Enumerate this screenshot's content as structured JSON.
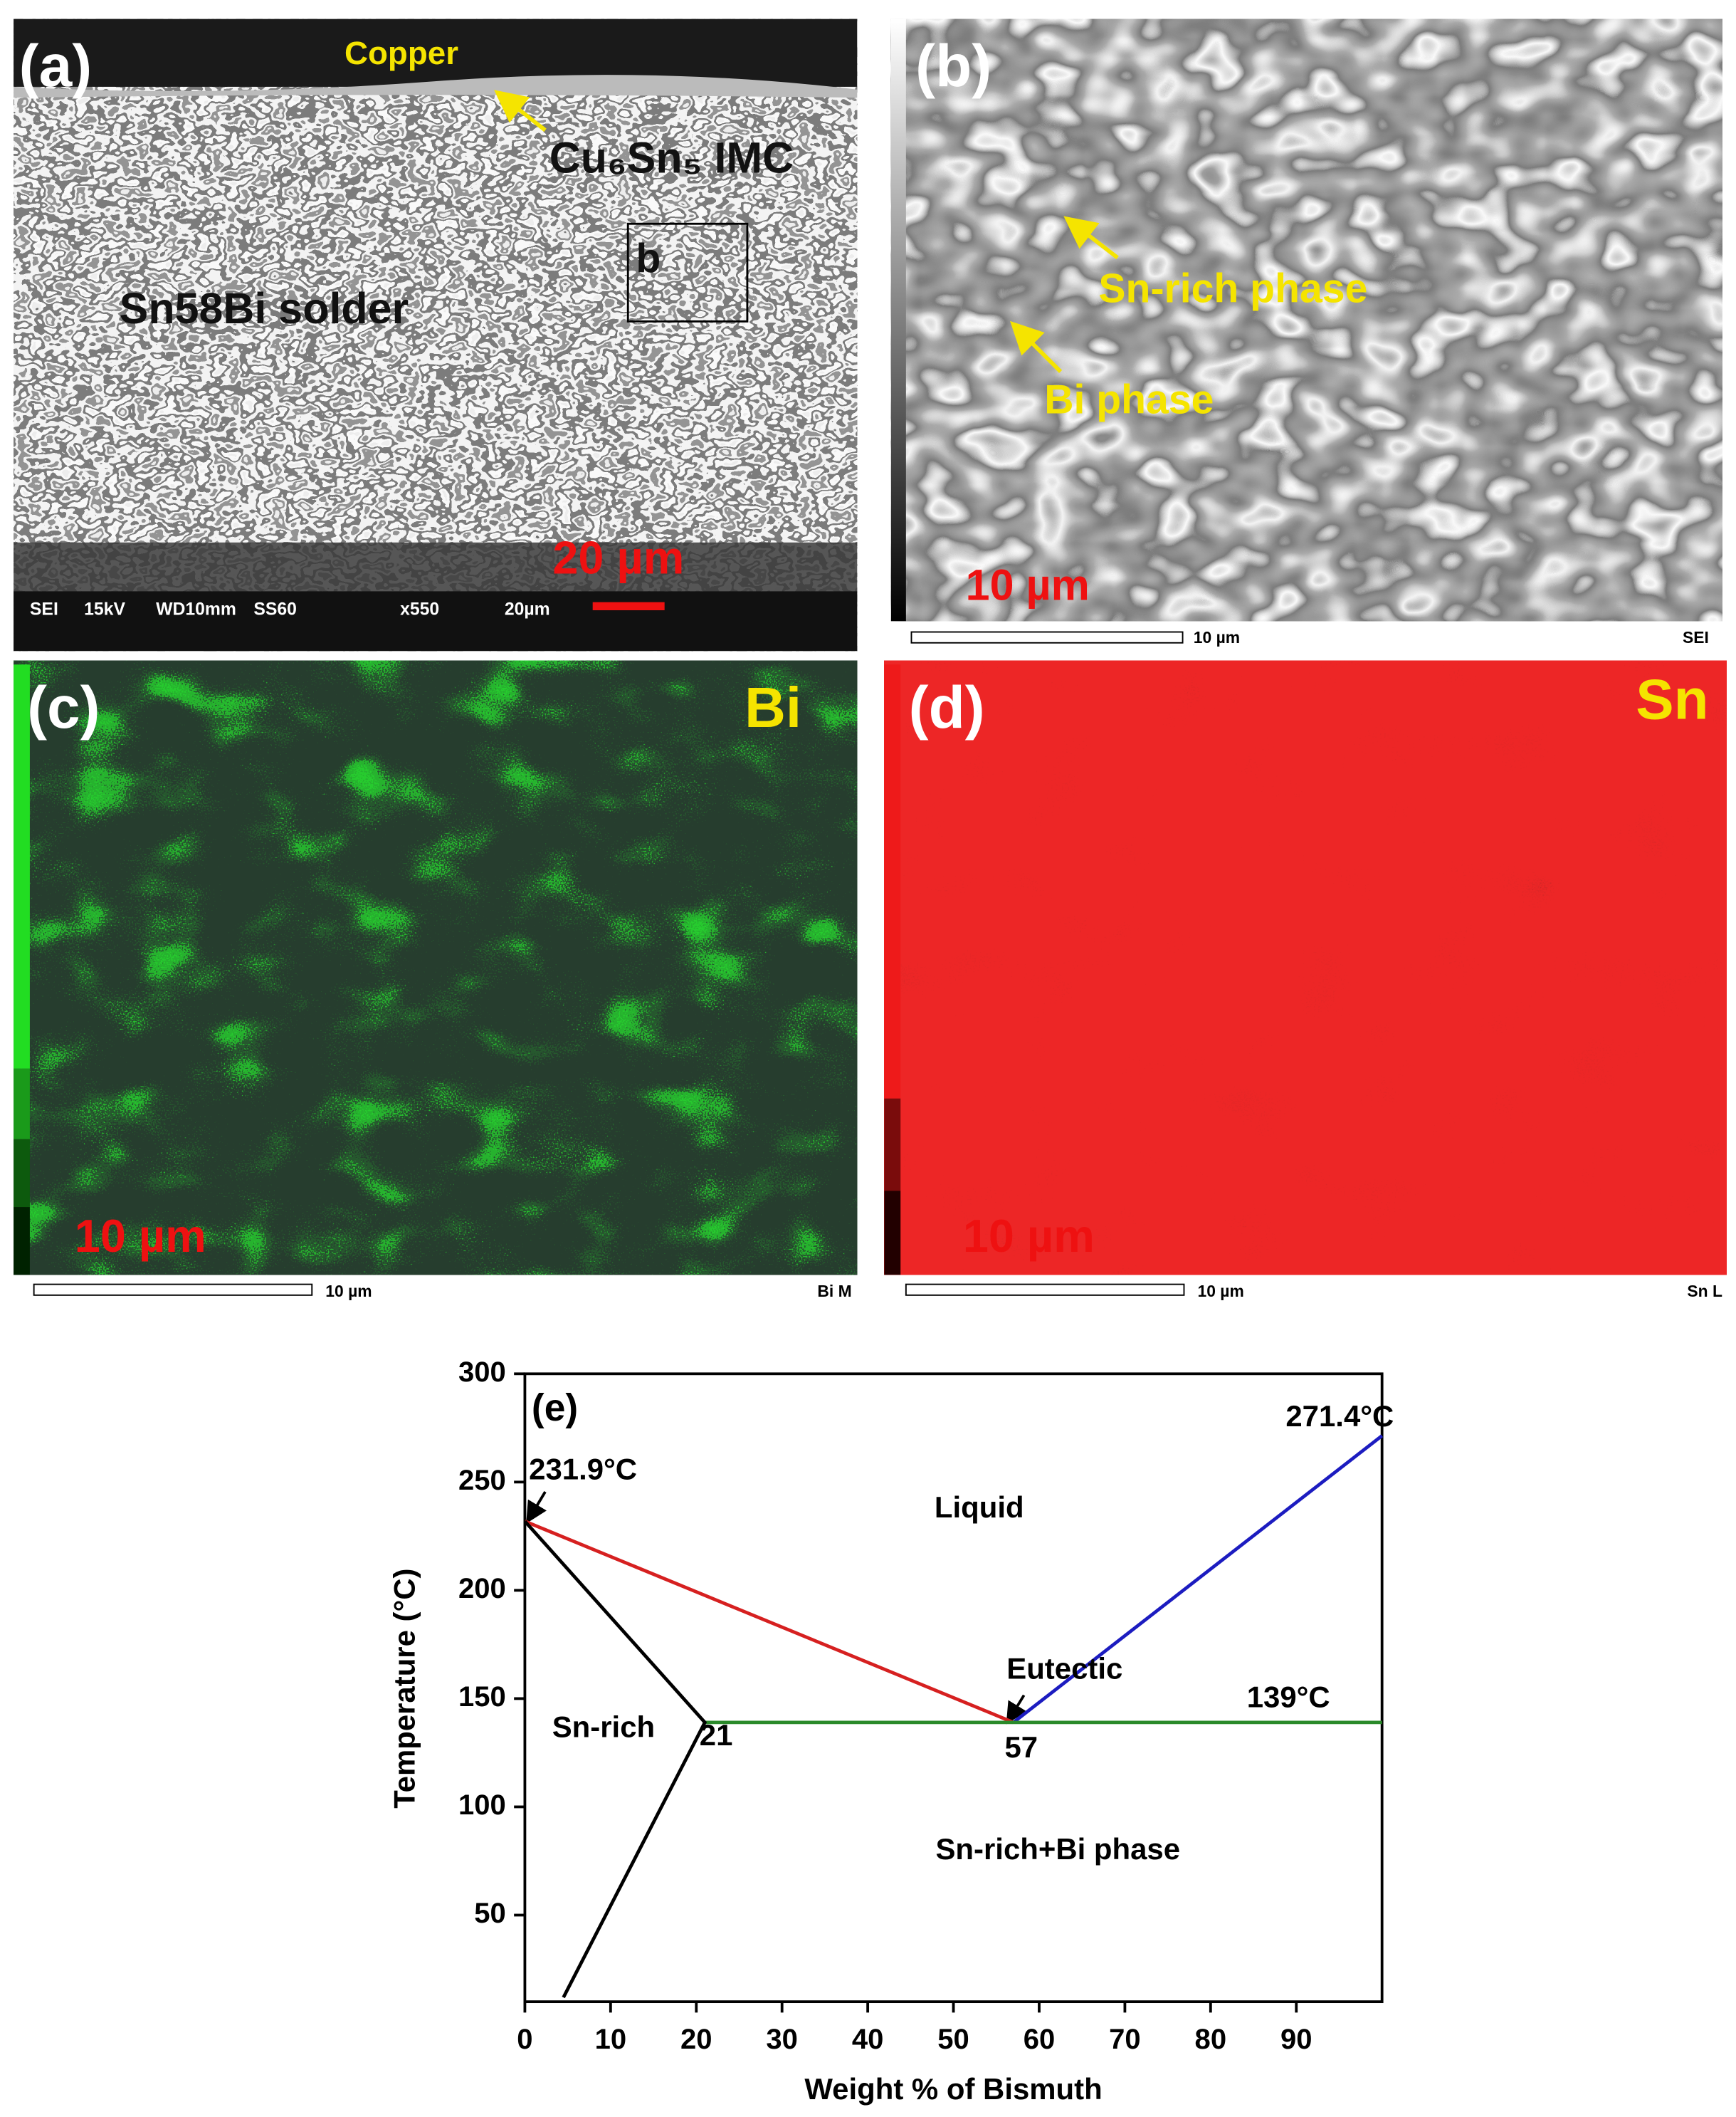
{
  "panels": [
    {
      "label": "(a)",
      "texts": [
        "Copper",
        "Cu₆Sn₅ IMC",
        "b",
        "Sn58Bi solder",
        "20 µm"
      ],
      "info_bar": [
        "SEI",
        "15kV",
        "WD10mm",
        "SS60",
        "x550",
        "20µm"
      ]
    },
    {
      "label": "(b)",
      "texts": [
        "Sn-rich phase",
        "Bi phase",
        "10 µm"
      ],
      "scale_bar": "10 µm",
      "detector": "SEI"
    },
    {
      "label": "(c)",
      "element": "Bi",
      "texts": [
        "10 µm"
      ],
      "scale_bar": "10 µm",
      "detector": "Bi M"
    },
    {
      "label": "(d)",
      "element": "Sn",
      "texts": [
        "10 µm"
      ],
      "scale_bar": "10 µm",
      "detector": "Sn L"
    }
  ],
  "chart_data": {
    "type": "line",
    "xlabel": "Weight % of Bismuth",
    "ylabel": "Temperature (°C)",
    "xlim": [
      0,
      100
    ],
    "ylim": [
      10,
      300
    ],
    "xticks": [
      0,
      10,
      20,
      30,
      40,
      50,
      60,
      70,
      80,
      90
    ],
    "yticks": [
      50,
      100,
      150,
      200,
      250,
      300
    ],
    "series": [
      {
        "color": "#d62020",
        "x": [
          0,
          57
        ],
        "values": [
          231.9,
          139
        ]
      },
      {
        "color": "#1c1cc0",
        "x": [
          57,
          100
        ],
        "values": [
          139,
          271.4
        ]
      },
      {
        "color": "#2a8a2a",
        "x": [
          21,
          100
        ],
        "values": [
          139,
          139
        ]
      },
      {
        "color": "#000000",
        "x": [
          0,
          21,
          4.5
        ],
        "values": [
          231.9,
          139,
          12
        ]
      }
    ],
    "annotations": [
      "(e)",
      "231.9°C",
      "271.4°C",
      "Liquid",
      "Eutectic",
      "139°C",
      "Sn-rich",
      "21",
      "57",
      "Sn-rich+Bi phase"
    ]
  }
}
